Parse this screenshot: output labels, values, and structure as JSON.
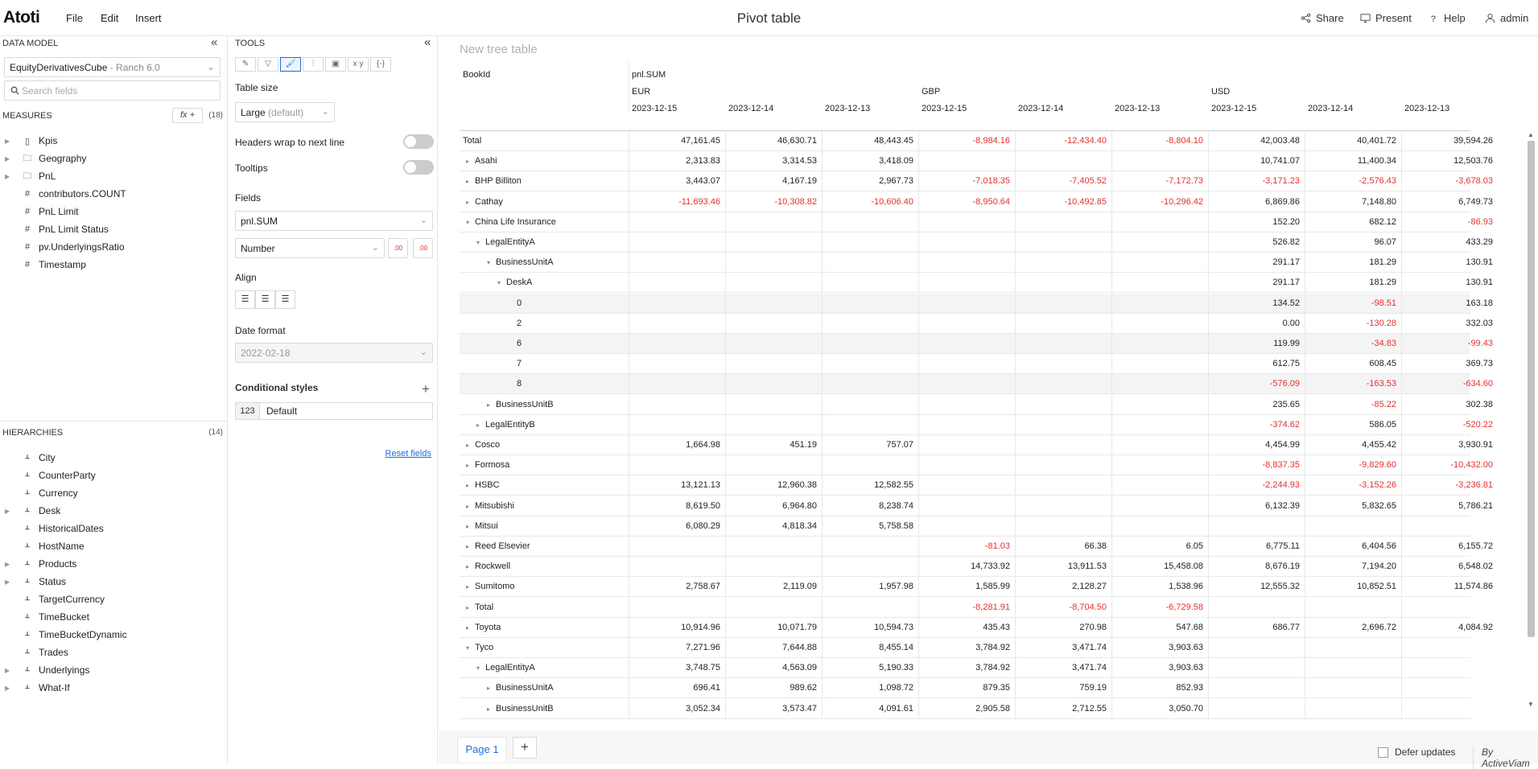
{
  "app": {
    "logo": "Atoti",
    "title": "Pivot table"
  },
  "menu": [
    "File",
    "Edit",
    "Insert"
  ],
  "right_menu": [
    {
      "label": "Share",
      "icon": "share-icon"
    },
    {
      "label": "Present",
      "icon": "monitor-icon"
    },
    {
      "label": "Help",
      "icon": "help-icon"
    },
    {
      "label": "admin",
      "icon": "user-icon"
    }
  ],
  "data_model": {
    "title": "DATA MODEL",
    "cube": "EquityDerivativesCube",
    "server": " - Ranch 6.0",
    "search_placeholder": "Search fields",
    "measures_title": "MEASURES",
    "measures_count": "(18)",
    "fx_label": "fx +",
    "measures": [
      {
        "label": "Kpis",
        "icon": "kpi-icon",
        "expandable": true
      },
      {
        "label": "Geography",
        "icon": "folder-icon",
        "expandable": true
      },
      {
        "label": "PnL",
        "icon": "folder-icon",
        "expandable": true
      },
      {
        "label": "contributors.COUNT",
        "icon": "hash-icon",
        "expandable": false
      },
      {
        "label": "PnL Limit",
        "icon": "hash-icon",
        "expandable": false
      },
      {
        "label": "PnL Limit Status",
        "icon": "hash-icon",
        "expandable": false
      },
      {
        "label": "pv.UnderlyingsRatio",
        "icon": "hash-icon",
        "expandable": false
      },
      {
        "label": "Timestamp",
        "icon": "hash-icon",
        "expandable": false
      }
    ],
    "hierarchies_title": "HIERARCHIES",
    "hierarchies_count": "(14)",
    "hierarchies": [
      {
        "label": "City",
        "expandable": false
      },
      {
        "label": "CounterParty",
        "expandable": false
      },
      {
        "label": "Currency",
        "expandable": false
      },
      {
        "label": "Desk",
        "expandable": true
      },
      {
        "label": "HistoricalDates",
        "expandable": false
      },
      {
        "label": "HostName",
        "expandable": false
      },
      {
        "label": "Products",
        "expandable": true
      },
      {
        "label": "Status",
        "expandable": true
      },
      {
        "label": "TargetCurrency",
        "expandable": false
      },
      {
        "label": "TimeBucket",
        "expandable": false
      },
      {
        "label": "TimeBucketDynamic",
        "expandable": false
      },
      {
        "label": "Trades",
        "expandable": false
      },
      {
        "label": "Underlyings",
        "expandable": true
      },
      {
        "label": "What-If",
        "expandable": true
      }
    ]
  },
  "tools": {
    "title": "TOOLS",
    "tabs": [
      "✎",
      "▽",
      "🖌",
      "⫶",
      "▣",
      "x·y",
      "{-}"
    ],
    "table_size_label": "Table size",
    "table_size_value": "Large",
    "table_size_default": " (default)",
    "headers_wrap_label": "Headers wrap to next line",
    "tooltips_label": "Tooltips",
    "fields_label": "Fields",
    "field_value": "pnl.SUM",
    "format_value": "Number",
    "decimals_decrease": ".00",
    "decimals_increase": ".00",
    "align_label": "Align",
    "date_format_label": "Date format",
    "date_format_value": "2022-02-18",
    "conditional_styles_label": "Conditional styles",
    "cond_badge": "123",
    "cond_name": "Default",
    "reset_fields": "Reset fields"
  },
  "widget": {
    "title": "New tree table",
    "row_header": "BookId",
    "measure": "pnl.SUM",
    "currencies": [
      "EUR",
      "GBP",
      "USD"
    ],
    "dates": [
      "2023-12-15",
      "2023-12-14",
      "2023-12-13"
    ],
    "rows": [
      {
        "label": "Total",
        "indent": 0,
        "tri": "",
        "values": [
          "47,161.45",
          "46,630.71",
          "48,443.45",
          "-8,984.16",
          "-12,434.40",
          "-8,804.10",
          "42,003.48",
          "40,401.72",
          "39,594.26"
        ]
      },
      {
        "label": "Asahi",
        "indent": 1,
        "tri": "▸",
        "values": [
          "2,313.83",
          "3,314.53",
          "3,418.09",
          "",
          "",
          "",
          "10,741.07",
          "11,400.34",
          "12,503.76"
        ]
      },
      {
        "label": "BHP Billiton",
        "indent": 1,
        "tri": "▸",
        "values": [
          "3,443.07",
          "4,167.19",
          "2,967.73",
          "-7,018.35",
          "-7,405.52",
          "-7,172.73",
          "-3,171.23",
          "-2,576.43",
          "-3,678.03"
        ]
      },
      {
        "label": "Cathay",
        "indent": 1,
        "tri": "▸",
        "values": [
          "-11,693.46",
          "-10,308.82",
          "-10,606.40",
          "-8,950.64",
          "-10,492.85",
          "-10,296.42",
          "6,869.86",
          "7,148.80",
          "6,749.73"
        ]
      },
      {
        "label": "China Life Insurance",
        "indent": 1,
        "tri": "▾",
        "values": [
          "",
          "",
          "",
          "",
          "",
          "",
          "152.20",
          "682.12",
          "-86.93"
        ]
      },
      {
        "label": "LegalEntityA",
        "indent": 2,
        "tri": "▾",
        "values": [
          "",
          "",
          "",
          "",
          "",
          "",
          "526.82",
          "96.07",
          "433.29"
        ]
      },
      {
        "label": "BusinessUnitA",
        "indent": 3,
        "tri": "▾",
        "values": [
          "",
          "",
          "",
          "",
          "",
          "",
          "291.17",
          "181.29",
          "130.91"
        ]
      },
      {
        "label": "DeskA",
        "indent": 4,
        "tri": "▾",
        "values": [
          "",
          "",
          "",
          "",
          "",
          "",
          "291.17",
          "181.29",
          "130.91"
        ]
      },
      {
        "label": "0",
        "indent": 5,
        "tri": "",
        "band": true,
        "values": [
          "",
          "",
          "",
          "",
          "",
          "",
          "134.52",
          "-98.51",
          "163.18"
        ]
      },
      {
        "label": "2",
        "indent": 5,
        "tri": "",
        "values": [
          "",
          "",
          "",
          "",
          "",
          "",
          "0.00",
          "-130.28",
          "332.03"
        ]
      },
      {
        "label": "6",
        "indent": 5,
        "tri": "",
        "band": true,
        "values": [
          "",
          "",
          "",
          "",
          "",
          "",
          "119.99",
          "-34.83",
          "-99.43"
        ]
      },
      {
        "label": "7",
        "indent": 5,
        "tri": "",
        "values": [
          "",
          "",
          "",
          "",
          "",
          "",
          "612.75",
          "608.45",
          "369.73"
        ]
      },
      {
        "label": "8",
        "indent": 5,
        "tri": "",
        "band": true,
        "values": [
          "",
          "",
          "",
          "",
          "",
          "",
          "-576.09",
          "-163.53",
          "-634.60"
        ]
      },
      {
        "label": "BusinessUnitB",
        "indent": 3,
        "tri": "▸",
        "values": [
          "",
          "",
          "",
          "",
          "",
          "",
          "235.65",
          "-85.22",
          "302.38"
        ]
      },
      {
        "label": "LegalEntityB",
        "indent": 2,
        "tri": "▸",
        "values": [
          "",
          "",
          "",
          "",
          "",
          "",
          "-374.62",
          "586.05",
          "-520.22"
        ]
      },
      {
        "label": "Cosco",
        "indent": 1,
        "tri": "▸",
        "values": [
          "1,664.98",
          "451.19",
          "757.07",
          "",
          "",
          "",
          "4,454.99",
          "4,455.42",
          "3,930.91"
        ]
      },
      {
        "label": "Formosa",
        "indent": 1,
        "tri": "▸",
        "values": [
          "",
          "",
          "",
          "",
          "",
          "",
          "-8,837.35",
          "-9,829.60",
          "-10,432.00"
        ]
      },
      {
        "label": "HSBC",
        "indent": 1,
        "tri": "▸",
        "values": [
          "13,121.13",
          "12,960.38",
          "12,582.55",
          "",
          "",
          "",
          "-2,244.93",
          "-3,152.26",
          "-3,236.81"
        ]
      },
      {
        "label": "Mitsubishi",
        "indent": 1,
        "tri": "▸",
        "values": [
          "8,619.50",
          "6,964.80",
          "8,238.74",
          "",
          "",
          "",
          "6,132.39",
          "5,832.65",
          "5,786.21"
        ]
      },
      {
        "label": "Mitsui",
        "indent": 1,
        "tri": "▸",
        "values": [
          "6,080.29",
          "4,818.34",
          "5,758.58",
          "",
          "",
          "",
          "",
          "",
          ""
        ]
      },
      {
        "label": "Reed Elsevier",
        "indent": 1,
        "tri": "▸",
        "values": [
          "",
          "",
          "",
          "-81.03",
          "66.38",
          "6.05",
          "6,775.11",
          "6,404.56",
          "6,155.72"
        ]
      },
      {
        "label": "Rockwell",
        "indent": 1,
        "tri": "▸",
        "values": [
          "",
          "",
          "",
          "14,733.92",
          "13,911.53",
          "15,458.08",
          "8,676.19",
          "7,194.20",
          "6,548.02"
        ]
      },
      {
        "label": "Sumitomo",
        "indent": 1,
        "tri": "▸",
        "values": [
          "2,758.67",
          "2,119.09",
          "1,957.98",
          "1,585.99",
          "2,128.27",
          "1,538.96",
          "12,555.32",
          "10,852.51",
          "11,574.86"
        ]
      },
      {
        "label": "Total",
        "indent": 1,
        "tri": "▸",
        "values": [
          "",
          "",
          "",
          "-8,281.91",
          "-8,704.50",
          "-6,729.58",
          "",
          "",
          ""
        ]
      },
      {
        "label": "Toyota",
        "indent": 1,
        "tri": "▸",
        "values": [
          "10,914.96",
          "10,071.79",
          "10,594.73",
          "435.43",
          "270.98",
          "547.68",
          "686.77",
          "2,696.72",
          "4,084.92"
        ]
      },
      {
        "label": "Tyco",
        "indent": 1,
        "tri": "▾",
        "values": [
          "7,271.96",
          "7,644.88",
          "8,455.14",
          "3,784.92",
          "3,471.74",
          "3,903.63",
          "",
          "",
          ""
        ]
      },
      {
        "label": "LegalEntityA",
        "indent": 2,
        "tri": "▾",
        "values": [
          "3,748.75",
          "4,563.09",
          "5,190.33",
          "3,784.92",
          "3,471.74",
          "3,903.63",
          "",
          "",
          ""
        ]
      },
      {
        "label": "BusinessUnitA",
        "indent": 3,
        "tri": "▸",
        "values": [
          "696.41",
          "989.62",
          "1,098.72",
          "879.35",
          "759.19",
          "852.93",
          "",
          "",
          ""
        ]
      },
      {
        "label": "BusinessUnitB",
        "indent": 3,
        "tri": "▸",
        "values": [
          "3,052.34",
          "3,573.47",
          "4,091.61",
          "2,905.58",
          "2,712.55",
          "3,050.70",
          "",
          "",
          ""
        ]
      }
    ]
  },
  "bottom": {
    "page_tab": "Page 1",
    "add_tab": "+",
    "defer_label": "Defer updates",
    "credit": "By ActiveViam"
  },
  "colors": {
    "accent": "#1d6fd6",
    "negative": "#e53030"
  }
}
